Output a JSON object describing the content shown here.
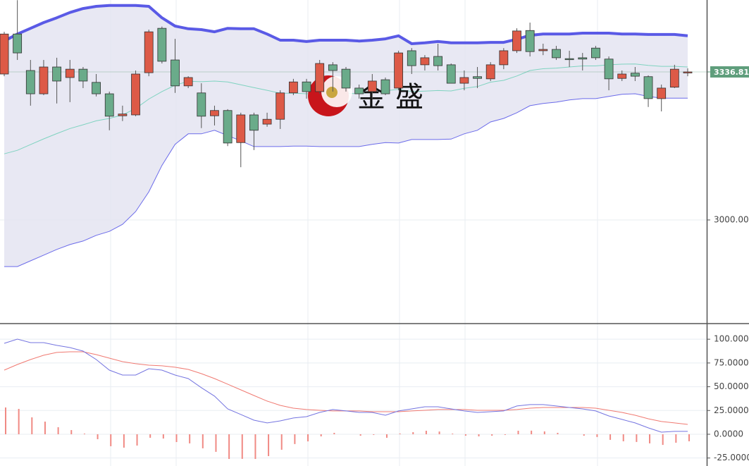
{
  "chart_data": [
    {
      "type": "candlestick",
      "open": [
        3332,
        3423,
        3340,
        3287,
        3348,
        3324,
        3343,
        3313,
        3287,
        3237,
        3239,
        3335,
        3436,
        3364,
        3305,
        3289,
        3237,
        3249,
        3176,
        3239,
        3218,
        3229,
        3289,
        3314,
        3292,
        3353,
        3343,
        3300,
        3292,
        3319,
        3300,
        3385,
        3353,
        3372,
        3353,
        3311,
        3326,
        3321,
        3353,
        3385,
        3431,
        3385,
        3388,
        3367,
        3369,
        3391,
        3366,
        3322,
        3334,
        3326,
        3276,
        3302,
        3336
      ],
      "high": [
        3428,
        3500,
        3364,
        3364,
        3369,
        3364,
        3348,
        3332,
        3292,
        3260,
        3340,
        3433,
        3440,
        3412,
        3327,
        3311,
        3260,
        3252,
        3244,
        3244,
        3244,
        3295,
        3321,
        3321,
        3364,
        3359,
        3348,
        3308,
        3332,
        3324,
        3385,
        3391,
        3375,
        3401,
        3356,
        3340,
        3348,
        3359,
        3391,
        3436,
        3449,
        3401,
        3396,
        3385,
        3380,
        3396,
        3372,
        3340,
        3348,
        3329,
        3308,
        3353,
        3345
      ],
      "low": [
        3327,
        3364,
        3260,
        3284,
        3265,
        3268,
        3300,
        3281,
        3204,
        3225,
        3236,
        3327,
        3356,
        3289,
        3300,
        3209,
        3215,
        3168,
        3120,
        3159,
        3212,
        3207,
        3284,
        3276,
        3287,
        3292,
        3292,
        3276,
        3276,
        3284,
        3295,
        3332,
        3340,
        3340,
        3311,
        3295,
        3300,
        3316,
        3343,
        3380,
        3372,
        3375,
        3364,
        3348,
        3340,
        3364,
        3295,
        3316,
        3316,
        3257,
        3247,
        3300,
        3327
      ],
      "close": [
        3423,
        3380,
        3287,
        3348,
        3316,
        3343,
        3316,
        3287,
        3236,
        3241,
        3332,
        3428,
        3361,
        3305,
        3324,
        3236,
        3249,
        3175,
        3239,
        3204,
        3229,
        3289,
        3314,
        3292,
        3356,
        3340,
        3300,
        3287,
        3316,
        3287,
        3380,
        3351,
        3369,
        3351,
        3311,
        3324,
        3322,
        3353,
        3385,
        3430,
        3383,
        3388,
        3369,
        3366,
        3366,
        3369,
        3321,
        3332,
        3327,
        3276,
        3300,
        3343,
        3336.81
      ],
      "up_color": "#dd5a47",
      "down_color": "#6aab8a",
      "bands": {
        "upper": [
          3407,
          3423,
          3436,
          3449,
          3460,
          3472,
          3481,
          3486,
          3488,
          3488,
          3488,
          3486,
          3460,
          3441,
          3435,
          3433,
          3428,
          3436,
          3435,
          3435,
          3423,
          3409,
          3409,
          3406,
          3409,
          3409,
          3409,
          3407,
          3409,
          3412,
          3419,
          3401,
          3403,
          3406,
          3403,
          3403,
          3403,
          3404,
          3404,
          3411,
          3420,
          3423,
          3423,
          3423,
          3425,
          3425,
          3425,
          3423,
          3423,
          3422,
          3422,
          3422,
          3419
        ],
        "middle": [
          3150.5,
          3158.5,
          3171.5,
          3184.5,
          3196.5,
          3208,
          3216.5,
          3225.5,
          3231,
          3239,
          3253.5,
          3275,
          3292,
          3306.5,
          3315.5,
          3314.5,
          3316,
          3314,
          3307.5,
          3301,
          3295,
          3288,
          3288.5,
          3287,
          3288,
          3288,
          3288,
          3287,
          3290.5,
          3294,
          3297,
          3292,
          3293,
          3294.5,
          3293.5,
          3299.5,
          3303.5,
          3313.5,
          3317.5,
          3327.5,
          3340,
          3344,
          3345.5,
          3348,
          3350.5,
          3350.5,
          3353,
          3354.5,
          3355,
          3351.5,
          3349.5,
          3349.5,
          3348
        ],
        "lower": [
          2894,
          2894,
          2907,
          2920,
          2933,
          2944,
          2952,
          2965,
          2974,
          2990,
          3019,
          3064,
          3124,
          3172,
          3196,
          3196,
          3204,
          3192,
          3180,
          3167,
          3167,
          3167,
          3168,
          3168,
          3167,
          3167,
          3167,
          3167,
          3172,
          3176,
          3175,
          3183,
          3183,
          3183,
          3184,
          3196,
          3204,
          3223,
          3231,
          3244,
          3260,
          3265,
          3268,
          3273,
          3276,
          3276,
          3281,
          3286,
          3287,
          3281,
          3277,
          3277,
          3277
        ],
        "upper_color": "#5a5ae6",
        "middle_color": "#7fd3c0",
        "lower_color": "#6b6bea",
        "fill": "#e4e4f1"
      },
      "last_price": 3336.81,
      "last_price_color": "#5f9e7c",
      "watermark": "金盛",
      "ylim": [
        2765.8,
        3500.4
      ],
      "yticks": [
        {
          "value": 3000,
          "label": "3000.00"
        }
      ],
      "grid": true
    },
    {
      "type": "macd",
      "macd": [
        95.7,
        100.1,
        96.4,
        96.4,
        93.5,
        91.2,
        87.5,
        78.6,
        67.5,
        62.3,
        62.3,
        69,
        67.5,
        62.3,
        58.6,
        49,
        40.1,
        26.7,
        20.8,
        14.8,
        11.9,
        14.1,
        17.1,
        18.5,
        23,
        26,
        24.5,
        23,
        23,
        20,
        24.5,
        26.7,
        28.9,
        28.9,
        26.7,
        24.5,
        23,
        23.7,
        24.5,
        29.7,
        31.2,
        31.2,
        29.7,
        28.2,
        26.7,
        24.5,
        19.3,
        15.6,
        11.9,
        6.7,
        2.2,
        3,
        3
      ],
      "signal": [
        67.5,
        73.4,
        78.6,
        83.1,
        86.1,
        86.8,
        86.8,
        83.8,
        80.1,
        76.4,
        74.2,
        72.7,
        72,
        70.5,
        68.2,
        63.8,
        58.6,
        52.7,
        46.7,
        40.8,
        34.9,
        30.4,
        27.4,
        26,
        25.2,
        24.5,
        24.5,
        24.5,
        23.7,
        23.7,
        23.7,
        24.5,
        25.2,
        26,
        26,
        26,
        25.2,
        25.2,
        25.2,
        26,
        27.4,
        28.2,
        28.2,
        28.2,
        28.2,
        27.4,
        25.2,
        23,
        20,
        16.3,
        13.4,
        11.9,
        10.4
      ],
      "histogram": [
        28.2,
        26.7,
        17.8,
        13.3,
        7.4,
        4.4,
        0.7,
        -5.2,
        -12.6,
        -14.1,
        -11.9,
        -3.7,
        -4.5,
        -8.2,
        -9.6,
        -14.8,
        -18.5,
        -26,
        -25.9,
        -26,
        -23,
        -16.3,
        -10.3,
        -7.5,
        -2.2,
        1.5,
        0,
        -1.5,
        -0.7,
        -3.7,
        0.8,
        2.2,
        3.7,
        2.9,
        0.7,
        -1.5,
        -2.2,
        -1.5,
        -0.7,
        3.7,
        3.8,
        3,
        1.5,
        0,
        -1.5,
        -2.9,
        -5.9,
        -7.4,
        -8.1,
        -9.6,
        -11.2,
        -8.9,
        -7.4
      ],
      "macd_color": "#7474e0",
      "signal_color": "#f07a72",
      "histogram_color": "#f08a84",
      "ylim": [
        -33.4,
        115.7
      ],
      "yticks": [
        {
          "value": 100,
          "label": "100.0000"
        },
        {
          "value": 75,
          "label": "75.0000"
        },
        {
          "value": 50,
          "label": "50.0000"
        },
        {
          "value": 25,
          "label": "25.0000"
        },
        {
          "value": 0,
          "label": "0.0000"
        },
        {
          "value": -25,
          "label": "-25.0000"
        }
      ],
      "grid": true
    }
  ]
}
